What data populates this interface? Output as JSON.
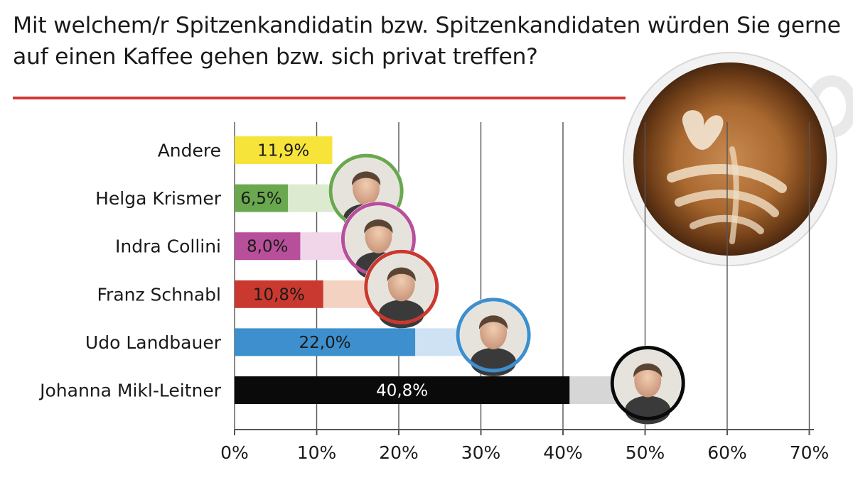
{
  "title": "Mit welchem/r Spitzenkandidatin bzw. Spitzenkandidaten würden Sie gerne auf einen Kaffee gehen bzw. sich privat treffen?",
  "colors": {
    "accent_rule": "#cf3a34",
    "grid": "#555555"
  },
  "chart_data": {
    "type": "bar",
    "orientation": "horizontal",
    "categories": [
      "Andere",
      "Helga Krismer",
      "Indra Collini",
      "Franz Schnabl",
      "Udo Landbauer",
      "Johanna Mikl-Leitner"
    ],
    "values": [
      11.9,
      6.5,
      8.0,
      10.8,
      22.0,
      40.8
    ],
    "value_labels": [
      "11,9%",
      "6,5%",
      "8,0%",
      "10,8%",
      "22,0%",
      "40,8%"
    ],
    "bar_colors": [
      "#f7e43b",
      "#6aa84f",
      "#b84f9b",
      "#c9392f",
      "#3d8fcd",
      "#0a0a0a"
    ],
    "track_colors": [
      "",
      "#dcebd0",
      "#f1d6ea",
      "#f3d2c2",
      "#cfe2f3",
      "#d6d6d6"
    ],
    "label_colors": [
      "#1a1a1a",
      "#1a1a1a",
      "#1a1a1a",
      "#1a1a1a",
      "#1a1a1a",
      "#ffffff"
    ],
    "portraits": [
      null,
      "portrait-helga-krismer",
      "portrait-indra-collini",
      "portrait-franz-schnabl",
      "portrait-udo-landbauer",
      "portrait-johanna-mikl-leitner"
    ],
    "xlim": [
      0,
      70
    ],
    "xticks": [
      0,
      10,
      20,
      30,
      40,
      50,
      60,
      70
    ],
    "xtick_labels": [
      "0%",
      "10%",
      "20%",
      "30%",
      "40%",
      "50%",
      "60%",
      "70%"
    ],
    "grid": true,
    "xlabel": "",
    "ylabel": ""
  },
  "decoration": {
    "image": "coffee-cup-latte-art-photo"
  }
}
